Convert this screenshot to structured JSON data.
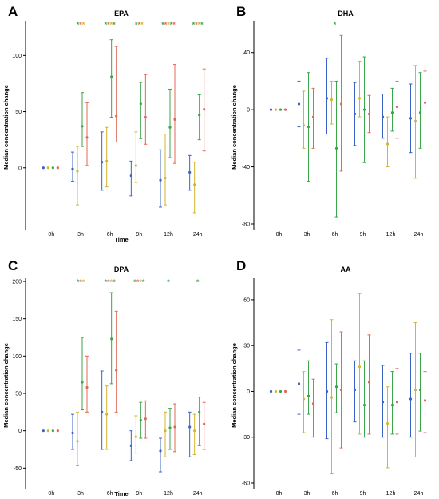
{
  "colors": {
    "blue": "#3a63c4",
    "yellow": "#d6b431",
    "green": "#3aa54a",
    "red": "#e0685a"
  },
  "chart_data": [
    {
      "type": "scatter",
      "panel": "A",
      "title": "EPA",
      "xlabel": "Time",
      "ylabel": "Median concentration change",
      "categories": [
        "0h",
        "3h",
        "6h",
        "9h",
        "12h",
        "24h"
      ],
      "ylim": [
        -50,
        128
      ],
      "yticks": [
        0,
        50,
        100
      ],
      "significance": [
        "",
        "***",
        "****",
        "***",
        "*****",
        "****"
      ],
      "series": [
        {
          "color": "blue",
          "median": [
            0,
            -1,
            5,
            -7,
            -11,
            -4
          ],
          "low": [
            0,
            -12,
            -20,
            -25,
            -35,
            -20
          ],
          "high": [
            0,
            14,
            32,
            6,
            16,
            11
          ]
        },
        {
          "color": "yellow",
          "median": [
            0,
            -3,
            6,
            2,
            -9,
            -15
          ],
          "low": [
            0,
            -33,
            -17,
            -13,
            -33,
            -40
          ],
          "high": [
            0,
            19,
            36,
            32,
            30,
            5
          ]
        },
        {
          "color": "green",
          "median": [
            0,
            37,
            81,
            57,
            36,
            47
          ],
          "low": [
            0,
            19,
            45,
            26,
            9,
            25
          ],
          "high": [
            0,
            67,
            114,
            76,
            70,
            65
          ]
        },
        {
          "color": "red",
          "median": [
            0,
            27,
            46,
            45,
            43,
            52
          ],
          "low": [
            0,
            2,
            23,
            21,
            4,
            15
          ],
          "high": [
            0,
            58,
            108,
            83,
            92,
            88
          ]
        }
      ]
    },
    {
      "type": "scatter",
      "panel": "B",
      "title": "DHA",
      "xlabel": "",
      "ylabel": "Median concentration change",
      "categories": [
        "0h",
        "3h",
        "6h",
        "9h",
        "12h",
        "24h"
      ],
      "ylim": [
        -80,
        60
      ],
      "yticks": [
        -80,
        -40,
        0,
        40
      ],
      "significance": [
        "",
        "",
        "*",
        "",
        "",
        ""
      ],
      "series": [
        {
          "color": "blue",
          "median": [
            0,
            4,
            8,
            -3,
            -5,
            -6
          ],
          "low": [
            0,
            -12,
            -17,
            -25,
            -20,
            -30
          ],
          "high": [
            0,
            20,
            36,
            19,
            11,
            18
          ]
        },
        {
          "color": "yellow",
          "median": [
            0,
            -11,
            7,
            8,
            -24,
            -8
          ],
          "low": [
            0,
            -27,
            -10,
            -5,
            -40,
            -48
          ],
          "high": [
            0,
            13,
            20,
            34,
            -5,
            31
          ]
        },
        {
          "color": "green",
          "median": [
            0,
            -12,
            -27,
            0,
            -2,
            -2
          ],
          "low": [
            0,
            -50,
            -75,
            -37,
            -15,
            -27
          ],
          "high": [
            0,
            26,
            20,
            37,
            15,
            26
          ]
        },
        {
          "color": "red",
          "median": [
            0,
            -5,
            4,
            -3,
            2,
            5
          ],
          "low": [
            0,
            -27,
            -43,
            -16,
            -20,
            -17
          ],
          "high": [
            0,
            15,
            52,
            10,
            20,
            27
          ]
        }
      ]
    },
    {
      "type": "scatter",
      "panel": "C",
      "title": "DPA",
      "xlabel": "Time",
      "ylabel": "Median concentration change",
      "categories": [
        "0h",
        "3h",
        "6h",
        "9h",
        "12h",
        "24h"
      ],
      "ylim": [
        -70,
        200
      ],
      "yticks": [
        -50,
        0,
        50,
        100,
        150,
        200
      ],
      "significance": [
        "",
        "***",
        "****",
        "****",
        "*",
        "*"
      ],
      "series": [
        {
          "color": "blue",
          "median": [
            0,
            -3,
            25,
            -20,
            -27,
            5
          ],
          "low": [
            0,
            -25,
            -25,
            -40,
            -55,
            -35
          ],
          "high": [
            0,
            22,
            80,
            0,
            -10,
            25
          ]
        },
        {
          "color": "yellow",
          "median": [
            0,
            -14,
            22,
            -8,
            0,
            0
          ],
          "low": [
            0,
            -47,
            -25,
            -30,
            -35,
            -32
          ],
          "high": [
            0,
            25,
            60,
            20,
            25,
            22
          ]
        },
        {
          "color": "green",
          "median": [
            0,
            65,
            123,
            14,
            4,
            25
          ],
          "low": [
            0,
            28,
            63,
            -10,
            -25,
            -20
          ],
          "high": [
            0,
            125,
            185,
            38,
            30,
            45
          ]
        },
        {
          "color": "red",
          "median": [
            0,
            58,
            81,
            16,
            5,
            9
          ],
          "low": [
            0,
            25,
            25,
            -10,
            -28,
            -25
          ],
          "high": [
            0,
            100,
            160,
            40,
            36,
            38
          ]
        }
      ]
    },
    {
      "type": "scatter",
      "panel": "D",
      "title": "AA",
      "xlabel": "Time",
      "ylabel": "Median concentration change",
      "categories": [
        "0h",
        "3h",
        "6h",
        "9h",
        "12h",
        "24h"
      ],
      "ylim": [
        -60,
        72
      ],
      "yticks": [
        -60,
        -30,
        0,
        30,
        60
      ],
      "significance": [
        "",
        "",
        "",
        "",
        "",
        ""
      ],
      "series": [
        {
          "color": "blue",
          "median": [
            0,
            5,
            0,
            1,
            -7,
            -5
          ],
          "low": [
            0,
            -15,
            -31,
            -20,
            -30,
            -30
          ],
          "high": [
            0,
            27,
            32,
            20,
            17,
            25
          ]
        },
        {
          "color": "yellow",
          "median": [
            0,
            -5,
            -4,
            16,
            -21,
            1
          ],
          "low": [
            0,
            -27,
            -54,
            -28,
            -50,
            -43
          ],
          "high": [
            0,
            13,
            47,
            64,
            3,
            45
          ]
        },
        {
          "color": "green",
          "median": [
            0,
            -3,
            3,
            -9,
            -9,
            1
          ],
          "low": [
            0,
            -15,
            -14,
            -30,
            -28,
            -26
          ],
          "high": [
            0,
            20,
            18,
            20,
            13,
            25
          ]
        },
        {
          "color": "red",
          "median": [
            0,
            -8,
            1,
            6,
            -7,
            -6
          ],
          "low": [
            0,
            -30,
            -37,
            -28,
            -28,
            -27
          ],
          "high": [
            0,
            8,
            39,
            37,
            15,
            13
          ]
        }
      ]
    }
  ]
}
